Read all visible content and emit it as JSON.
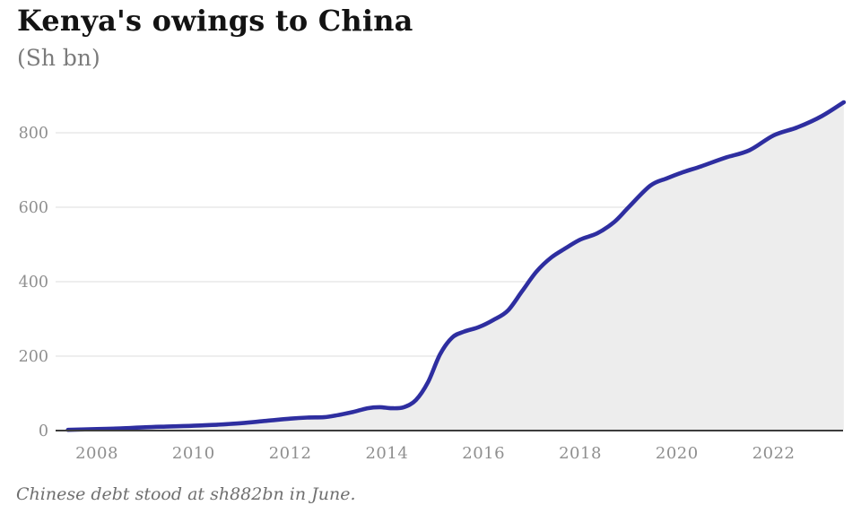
{
  "chart_data": {
    "type": "area",
    "title": "Kenya's owings to China",
    "subtitle": "(Sh bn)",
    "annotation": "Chinese debt stood at sh882bn in June.",
    "unit": "Sh bn",
    "x": [
      2007.4,
      2008,
      2008.5,
      2009,
      2009.5,
      2010,
      2010.5,
      2011,
      2011.5,
      2012,
      2012.35,
      2012.7,
      2013,
      2013.3,
      2013.6,
      2013.85,
      2014.1,
      2014.35,
      2014.6,
      2014.85,
      2015.1,
      2015.35,
      2015.6,
      2015.9,
      2016.2,
      2016.5,
      2016.8,
      2017.1,
      2017.4,
      2017.7,
      2018,
      2018.35,
      2018.7,
      2019,
      2019.45,
      2019.8,
      2020.1,
      2020.5,
      2021,
      2021.5,
      2022,
      2022.5,
      2023,
      2023.45
    ],
    "values": [
      2,
      4,
      6,
      9,
      11,
      13,
      16,
      20,
      26,
      32,
      35,
      36,
      42,
      50,
      60,
      63,
      60,
      63,
      82,
      130,
      205,
      250,
      266,
      278,
      297,
      322,
      375,
      428,
      465,
      490,
      513,
      530,
      560,
      600,
      658,
      678,
      693,
      710,
      733,
      753,
      793,
      815,
      845,
      882
    ],
    "last_value": 882,
    "x_ticks": [
      2008,
      2010,
      2012,
      2014,
      2016,
      2018,
      2020,
      2022
    ],
    "y_ticks": [
      0,
      200,
      400,
      600,
      800
    ],
    "xlim": [
      2007.4,
      2023.45
    ],
    "ylim": [
      0,
      900
    ],
    "grid": "horizontal",
    "legend": "none",
    "colors": {
      "line": "#2e2ea0",
      "fill": "#ededed",
      "grid": "#e3e3e3",
      "axis": "#3d3d3d",
      "tick_text": "#8f8f8f",
      "title_text": "#131313",
      "subtitle_text": "#7b7b7b",
      "note_text": "#6f6f6f"
    }
  }
}
